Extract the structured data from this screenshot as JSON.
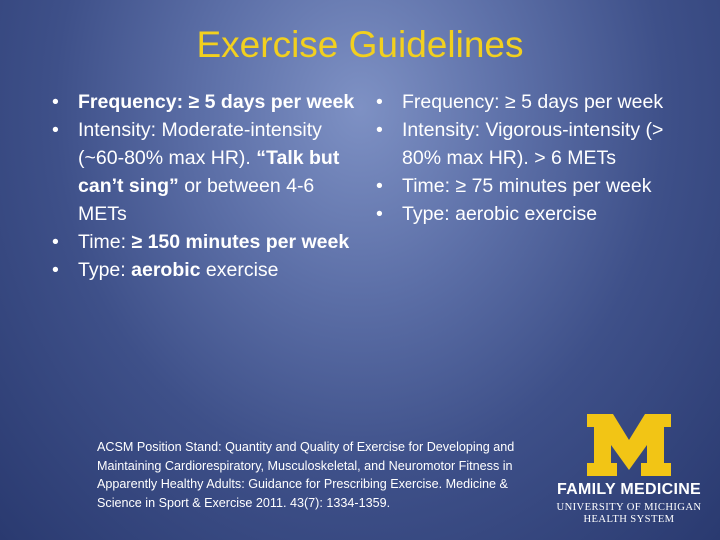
{
  "title": "Exercise Guidelines",
  "bullet_char": "•",
  "left": {
    "frequency": {
      "label": "Frequency:",
      "value": " ≥ 5 days per week"
    },
    "intensity": {
      "label": "Intensity: Moderate-intensity (~60-80% max HR).",
      "quote": "“Talk but can’t sing”",
      "tail": " or between 4-6 METs"
    },
    "time": {
      "label": "Time: ",
      "value": "≥ 150 minutes per week"
    },
    "type": {
      "label": "Type: ",
      "value": "aerobic",
      "tail": " exercise"
    }
  },
  "right": {
    "frequency": "Frequency: ≥ 5 days per week",
    "intensity": "Intensity: Vigorous-intensity (> 80% max HR). > 6 METs",
    "time": "Time: ≥ 75 minutes per week",
    "type": "Type: aerobic exercise"
  },
  "citation": "ACSM Position Stand: Quantity and Quality of Exercise for Developing and Maintaining Cardiorespiratory, Musculoskeletal, and Neuromotor Fitness in Apparently Healthy Adults: Guidance for Prescribing Exercise. Medicine & Science in Sport & Exercise 2011. 43(7): 1334-1359.",
  "logo": {
    "letter": "M",
    "department": "FAMILY MEDICINE",
    "university": "UNIVERSITY OF MICHIGAN",
    "system": "HEALTH SYSTEM",
    "color": "#f2c515"
  },
  "colors": {
    "title": "#f2d01e",
    "text": "#ffffff"
  }
}
